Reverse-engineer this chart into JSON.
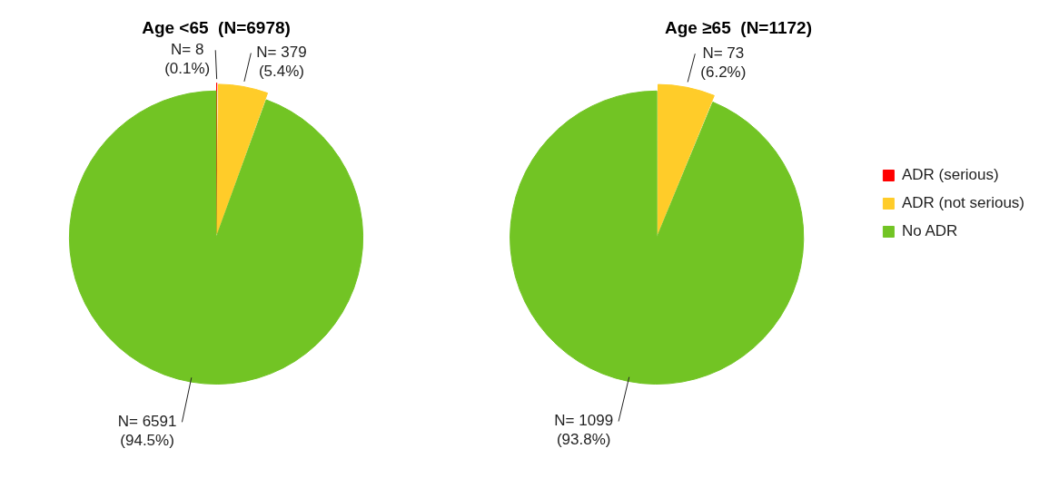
{
  "chart_data": [
    {
      "type": "pie",
      "title": "Age <65  (N=6978)",
      "categories": [
        null,
        null,
        null
      ],
      "values": [
        8,
        379,
        6591
      ],
      "colors": [
        "#ff0000",
        "#ffcc29",
        "#72c424"
      ],
      "value_labels": [
        "N= 8 (0.1%)",
        "N= 379 (5.4%)",
        "N= 6591 (94.5%)"
      ],
      "legend": false
    },
    {
      "type": "pie",
      "title": "Age ≥65  (N=1172)",
      "categories": [
        "ADR (serious)",
        "ADR (not serious)",
        "No ADR"
      ],
      "values": [
        null,
        73,
        1099
      ],
      "colors": [
        "#ff0000",
        "#ffcc29",
        "#72c424"
      ],
      "value_labels": [
        null,
        "N= 73 (6.2%)",
        "N= 1099 (93.8%)"
      ],
      "legend": "right"
    }
  ]
}
